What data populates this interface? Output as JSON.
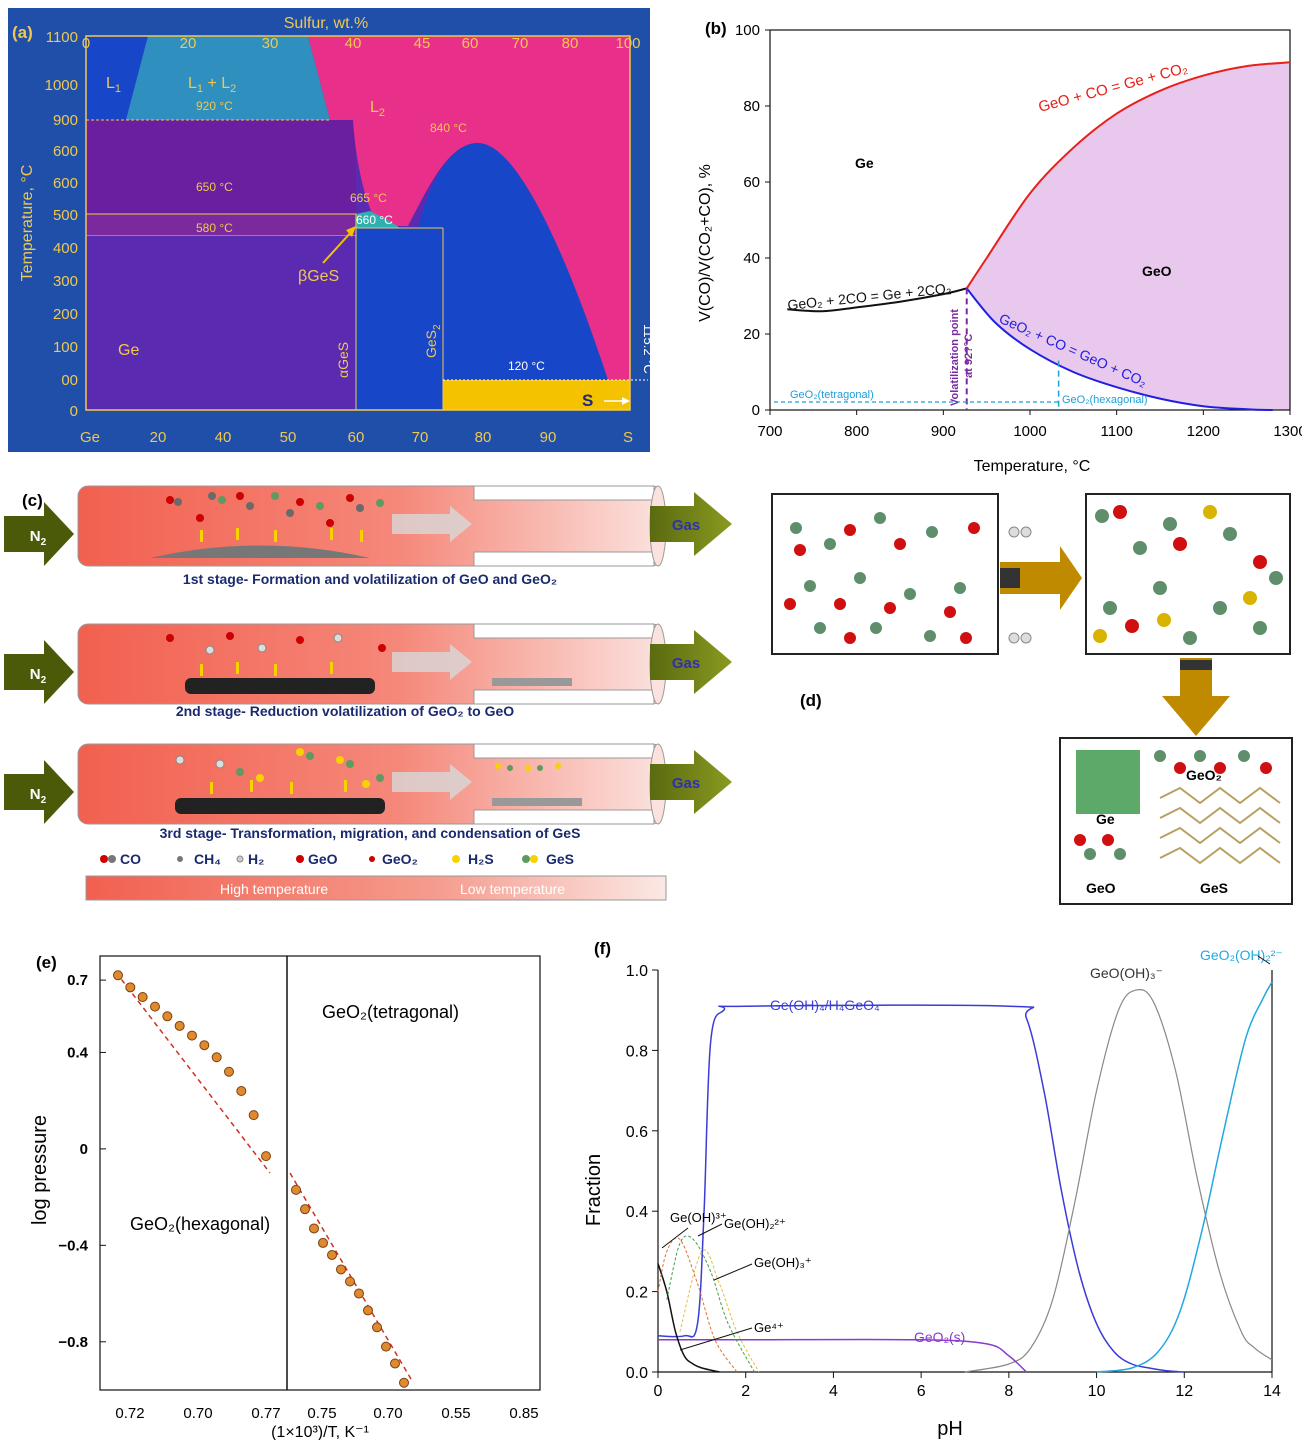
{
  "panel_a": {
    "label": "(a)",
    "top_axis_title": "Sulfur, wt.%",
    "top_ticks": [
      "0",
      "20",
      "30",
      "40",
      "45",
      "60",
      "70",
      "80",
      "100"
    ],
    "bottom_ticks": [
      "Ge",
      "20",
      "40",
      "50",
      "60",
      "70",
      "80",
      "90",
      "S"
    ],
    "y_ticks": [
      "1100",
      "1000",
      "900",
      "600",
      "600",
      "500",
      "400",
      "300",
      "200",
      "100",
      "00",
      "0"
    ],
    "y_title": "Temperature, °C",
    "regions": {
      "l1": "L",
      "l1_sub": "1",
      "l1l2_a": "L",
      "l1l2_b": "1",
      "l1l2_c": " + L",
      "l1l2_d": "2",
      "l2": "L",
      "l2_sub": "2",
      "ge": "Ge",
      "s": "S",
      "beta_ges": "βGeS",
      "alpha_ges": "αGeS",
      "ges2": "GeS",
      "ges2_sub": "2"
    },
    "temps": {
      "t920": "920 °C",
      "t650": "650 °C",
      "t580": "580 °C",
      "t665": "665 °C",
      "t660": "660 °C",
      "t840": "840 °C",
      "t120": "120 °C",
      "t115": "115.2 °C"
    },
    "colors": {
      "bg": "#1f4fa8",
      "purple": "#6a1fa0",
      "magenta": "#e8308a",
      "teal": "#2f8fbf",
      "blue": "#1846c8",
      "yellow": "#f5c200",
      "axis": "#f0c850"
    }
  },
  "panel_b": {
    "label": "(b)",
    "y_title": "V(CO)/V(CO₂+CO), %",
    "x_title": "Temperature, °C",
    "ge_label": "Ge",
    "geo_label": "GeO",
    "reaction_red": "GeO + CO = Ge + CO₂",
    "reaction_black": "GeO₂ + 2CO = Ge + 2CO₂",
    "reaction_blue": "GeO₂ + CO = GeO + CO₂",
    "volat_label_1": "Volatilization point",
    "volat_label_2": "at 92?°C",
    "tetragonal_label": "GeO₂(tetragonal)",
    "hexagonal_label": "GeO₂(hexagonal)",
    "colors": {
      "red": "#e8201a",
      "black": "#111111",
      "blue": "#2020e0",
      "fill": "#e8c8ec",
      "cyan": "#1fa0d8",
      "purple": "#7a2aa0"
    }
  },
  "panel_c": {
    "label": "(c)",
    "n2": "N",
    "n2_sub": "2",
    "gas": "Gas",
    "stage1": "1st stage- Formation and volatilization of GeO and GeO₂",
    "stage2": "2nd stage- Reduction volatilization of GeO₂ to GeO",
    "stage3": "3rd stage- Transformation, migration, and condensation of GeS",
    "legend": [
      "CO",
      "CH₄",
      "H₂",
      "GeO",
      "GeO₂",
      "H₂S",
      "GeS"
    ],
    "high_temp": "High temperature",
    "low_temp": "Low temperature",
    "colors": {
      "tube": "#f26a5c",
      "arrow_green": "#6b7f12",
      "arrow_dark": "#4a4a10",
      "navy": "#1a2a6e"
    }
  },
  "panel_d": {
    "label": "(d)",
    "ge": "Ge",
    "geo2": "GeO₂",
    "geo": "GeO",
    "ges": "GeS",
    "colors": {
      "arrow": "#c08a00",
      "ge": "#4f8f5a",
      "o": "#d01010",
      "s": "#d8b400"
    }
  },
  "panel_e": {
    "label": "(e)",
    "y_title": "log pressure",
    "x_title": "(1×10³)/T, K⁻¹",
    "hex_label": "GeO₂(hexagonal)",
    "tet_label": "GeO₂(tetragonal)",
    "x_ticks": [
      "0.72",
      "0.70",
      "0.77",
      "0.75",
      "0.70",
      "0.55",
      "0.85"
    ],
    "y_ticks": [
      "0.7",
      "0.4",
      "0",
      "−0.4",
      "−0.8"
    ]
  },
  "panel_f": {
    "label": "(f)",
    "y_title": "Fraction",
    "x_title": "pH",
    "species": {
      "geoh4": "Ge(OH)₄/H₄GeO₄",
      "geooh3": "GeO(OH)₃⁻",
      "geo2oh2": "GeO₂(OH)₂²⁻",
      "geoh3p": "Ge(OH)³⁺",
      "geoh22p": "Ge(OH)₂²⁺",
      "geoh3plus": "Ge(OH)₃⁺",
      "ge4": "Ge⁴⁺",
      "geo2s": "GeO₂(s)"
    },
    "colors": {
      "blue": "#3b3bd8",
      "gray": "#888888",
      "cyan": "#22a8e0",
      "purple": "#8a3ad0"
    }
  },
  "chart_data": [
    {
      "type": "line",
      "id": "b",
      "xlim": [
        700,
        1300
      ],
      "ylim": [
        0,
        100
      ],
      "x_ticks": [
        700,
        800,
        900,
        1000,
        1100,
        1200,
        1300
      ],
      "y_ticks": [
        0,
        20,
        40,
        60,
        80,
        100
      ],
      "xlabel": "Temperature, °C",
      "ylabel": "V(CO)/V(CO₂+CO), %",
      "series": [
        {
          "x": [
            720,
            760,
            800,
            850,
            900,
            927
          ],
          "y": [
            26.5,
            26,
            27,
            28.5,
            30.5,
            32
          ]
        },
        {
          "x": [
            927,
            950,
            1000,
            1050,
            1100,
            1150,
            1200,
            1250,
            1300
          ],
          "y": [
            32,
            40,
            57,
            69,
            78,
            84,
            88,
            90.5,
            91.5
          ]
        },
        {
          "x": [
            927,
            960,
            1000,
            1050,
            1100,
            1150,
            1200,
            1250,
            1280
          ],
          "y": [
            32,
            23,
            16,
            10,
            6,
            3,
            1,
            0.2,
            0
          ]
        }
      ]
    },
    {
      "type": "scatter",
      "id": "e",
      "ylim": [
        -1.0,
        0.8
      ],
      "y_ticks": [
        0.7,
        0.4,
        0,
        -0.4,
        -0.8
      ],
      "xlabel": "(1×10³)/T, K⁻¹",
      "ylabel": "log pressure",
      "series": [
        {
          "name": "GeO₂(hexagonal)",
          "y": [
            0.72,
            0.67,
            0.63,
            0.59,
            0.55,
            0.51,
            0.47,
            0.43,
            0.38,
            0.32,
            0.24,
            0.14,
            -0.03
          ]
        },
        {
          "name": "GeO₂(tetragonal)",
          "y": [
            -0.17,
            -0.25,
            -0.33,
            -0.39,
            -0.44,
            -0.5,
            -0.55,
            -0.6,
            -0.67,
            -0.74,
            -0.82,
            -0.89,
            -0.97
          ]
        }
      ]
    },
    {
      "type": "line",
      "id": "f",
      "xlim": [
        0,
        14
      ],
      "ylim": [
        0,
        1.0
      ],
      "x_ticks": [
        0,
        2,
        4,
        6,
        8,
        10,
        12,
        14
      ],
      "y_ticks": [
        0.0,
        0.2,
        0.4,
        0.6,
        0.8,
        1.0
      ],
      "xlabel": "pH",
      "ylabel": "Fraction",
      "series": [
        {
          "x": [
            0,
            0.6,
            0.9,
            1.05,
            1.2,
            1.5,
            2,
            8,
            8.4,
            8.8,
            9.2,
            9.6,
            10,
            10.4,
            10.8,
            11.2,
            11.6,
            12
          ],
          "y": [
            0.09,
            0.09,
            0.12,
            0.4,
            0.82,
            0.9,
            0.91,
            0.91,
            0.88,
            0.7,
            0.45,
            0.25,
            0.12,
            0.05,
            0.02,
            0.01,
            0.003,
            0
          ]
        },
        {
          "x": [
            7,
            8,
            8.5,
            9,
            9.5,
            10,
            10.5,
            10.9,
            11.3,
            11.8,
            12.3,
            12.8,
            13.3,
            13.6,
            14
          ],
          "y": [
            0,
            0.02,
            0.06,
            0.18,
            0.42,
            0.7,
            0.9,
            0.95,
            0.92,
            0.75,
            0.48,
            0.25,
            0.1,
            0.06,
            0.03
          ]
        },
        {
          "x": [
            10,
            10.8,
            11.4,
            11.9,
            12.4,
            12.9,
            13.4,
            13.8,
            14
          ],
          "y": [
            0,
            0.01,
            0.05,
            0.15,
            0.35,
            0.6,
            0.83,
            0.93,
            0.97
          ]
        },
        {
          "x": [
            0,
            2,
            6,
            7.5,
            8,
            8.4
          ],
          "y": [
            0.08,
            0.08,
            0.08,
            0.07,
            0.04,
            0
          ]
        },
        {
          "x": [
            0,
            0.2,
            0.4,
            0.6,
            0.8,
            1.0,
            1.4
          ],
          "y": [
            0.27,
            0.2,
            0.1,
            0.04,
            0.02,
            0.01,
            0
          ]
        },
        {
          "x": [
            0,
            0.2,
            0.5,
            0.9,
            1.3,
            1.8
          ],
          "y": [
            0.2,
            0.3,
            0.33,
            0.22,
            0.08,
            0
          ]
        },
        {
          "x": [
            0.2,
            0.5,
            0.8,
            1.2,
            1.6,
            2.2
          ],
          "y": [
            0.18,
            0.32,
            0.33,
            0.25,
            0.12,
            0
          ]
        },
        {
          "x": [
            0.5,
            1.0,
            1.4,
            1.8,
            2.3
          ],
          "y": [
            0.1,
            0.3,
            0.22,
            0.1,
            0
          ]
        }
      ]
    }
  ]
}
